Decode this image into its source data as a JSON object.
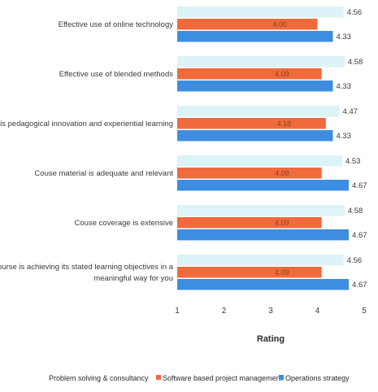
{
  "chart_data": {
    "type": "bar",
    "orientation": "horizontal",
    "categories": [
      [
        "Effective use of online technology"
      ],
      [
        "Effective use of blended methods"
      ],
      [
        "There is pedagogical innovation and experiential learning"
      ],
      [
        "Couse material is adequate and relevant"
      ],
      [
        "Couse coverage is extensive"
      ],
      [
        "Course is achieving its stated learning objectives in a",
        "meaningful way for you"
      ]
    ],
    "series": [
      {
        "name": "Problem solving & consultancy",
        "color": "#dcf3f7",
        "values": [
          4.56,
          4.58,
          4.47,
          4.53,
          4.58,
          4.56
        ]
      },
      {
        "name": "Software based project management",
        "color": "#f06a3c",
        "values": [
          4.0,
          4.09,
          4.18,
          4.09,
          4.09,
          4.09
        ]
      },
      {
        "name": "Operations strategy",
        "color": "#3d8ee0",
        "values": [
          4.33,
          4.33,
          4.33,
          4.67,
          4.67,
          4.67
        ]
      }
    ],
    "value_labels": [
      [
        "4.56",
        "4.00",
        "4.33"
      ],
      [
        "4.58",
        "4.09",
        "4.33"
      ],
      [
        "4.47",
        "4.18",
        "4.33"
      ],
      [
        "4.53",
        "4.09",
        "4.67"
      ],
      [
        "4.58",
        "4.09",
        "4.67"
      ],
      [
        "4.56",
        "4.09",
        "4.67"
      ]
    ],
    "xlim": [
      1,
      5
    ],
    "xticks": [
      "1",
      "2",
      "3",
      "4",
      "5"
    ],
    "xlabel": "Rating",
    "legend_position": "bottom",
    "grid": false
  }
}
